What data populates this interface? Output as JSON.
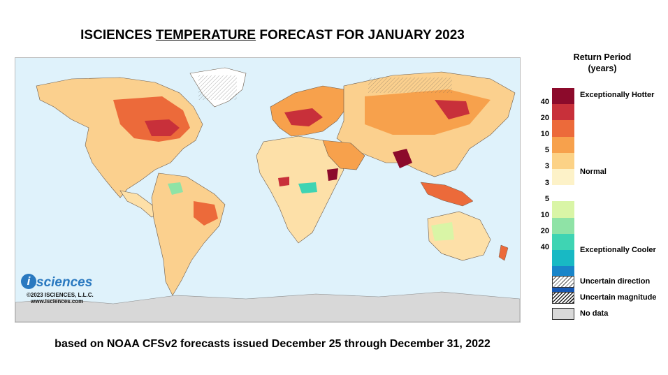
{
  "title": {
    "pre": "ISCIENCES ",
    "underlined": "TEMPERATURE",
    "post": " FORECAST FOR JANUARY 2023"
  },
  "footer": "based on NOAA CFSv2 forecasts issued December 25 through December 31, 2022",
  "logo": {
    "letter": "i",
    "word": "sciences",
    "copyright": "©2023 ISCIENCES, L.L.C.",
    "url": "www.isciences.com"
  },
  "legend": {
    "title_line1": "Return Period",
    "title_line2": "(years)",
    "hot_label": "Exceptionally Hotter",
    "normal_label": "Normal",
    "cool_label": "Exceptionally Cooler",
    "ticks": [
      "40",
      "20",
      "10",
      "5",
      "3",
      "3",
      "5",
      "10",
      "20",
      "40"
    ],
    "colors": [
      "#8c0a2b",
      "#c8303a",
      "#ec6a3a",
      "#f7a14c",
      "#fcd286",
      "#fdf2c8",
      "#ffffff",
      "#d9f5a6",
      "#8fe3a6",
      "#3fd4b3",
      "#18b9c4",
      "#1985c9",
      "#1557b3"
    ],
    "uncertain_direction": "Uncertain direction",
    "uncertain_magnitude": "Uncertain magnitude",
    "no_data": "No data"
  },
  "map": {
    "ocean_color": "#dff2fb",
    "land_base_color": "#fbe4bd",
    "antarctica_color": "#d8d8d8",
    "greenland_color": "#ffffff"
  }
}
